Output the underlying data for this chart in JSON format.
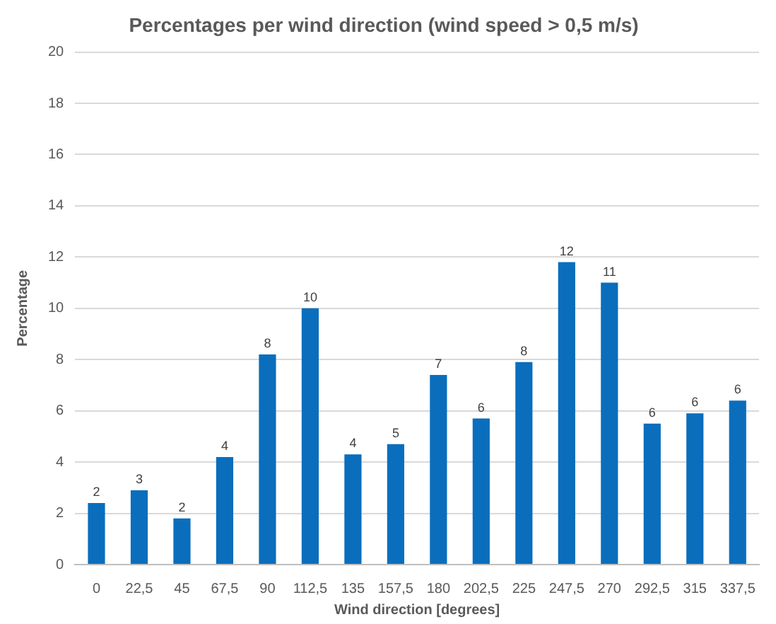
{
  "chart_data": {
    "type": "bar",
    "title": "Percentages per wind direction (wind speed > 0,5 m/s)",
    "xlabel": "Wind direction [degrees]",
    "ylabel": "Percentage",
    "categories": [
      "0",
      "22,5",
      "45",
      "67,5",
      "90",
      "112,5",
      "135",
      "157,5",
      "180",
      "202,5",
      "225",
      "247,5",
      "270",
      "292,5",
      "315",
      "337,5"
    ],
    "values": [
      2.4,
      2.9,
      1.8,
      4.2,
      8.2,
      10.0,
      4.3,
      4.7,
      7.4,
      5.7,
      7.9,
      11.8,
      11.0,
      5.5,
      5.9,
      6.4
    ],
    "value_labels": [
      "2",
      "3",
      "2",
      "4",
      "8",
      "10",
      "4",
      "5",
      "7",
      "6",
      "8",
      "12",
      "11",
      "6",
      "6",
      "6"
    ],
    "color": "#0a6ebd",
    "ylim": [
      0,
      20
    ],
    "yticks": [
      0,
      2,
      4,
      6,
      8,
      10,
      12,
      14,
      16,
      18,
      20
    ],
    "grid": "y",
    "legend": false
  }
}
